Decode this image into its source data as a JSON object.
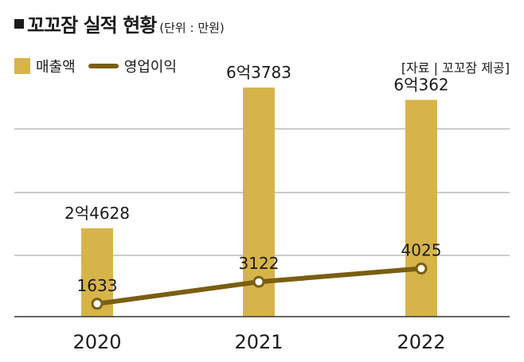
{
  "header": {
    "title": "꼬꼬잠 실적 현황",
    "unit": "(단위 : 만원)"
  },
  "legend": {
    "bar_label": "매출액",
    "line_label": "영업이익"
  },
  "source": "[자료 | 꼬꼬잠 제공]",
  "colors": {
    "bar": "#d7b44a",
    "line": "#7a5e12",
    "grid": "#9a9a9a",
    "axis": "#333333"
  },
  "chart_data": {
    "type": "bar",
    "categories": [
      "2020",
      "2021",
      "2022"
    ],
    "series": [
      {
        "name": "매출액",
        "type": "bar",
        "values": [
          24628,
          63783,
          60362
        ],
        "labels": [
          "2억4628",
          "6억3783",
          "6억362"
        ]
      },
      {
        "name": "영업이익",
        "type": "line",
        "values": [
          1633,
          3122,
          4025
        ],
        "labels": [
          "1633",
          "3122",
          "4025"
        ]
      }
    ],
    "grid": true,
    "legend_position": "top-left"
  }
}
